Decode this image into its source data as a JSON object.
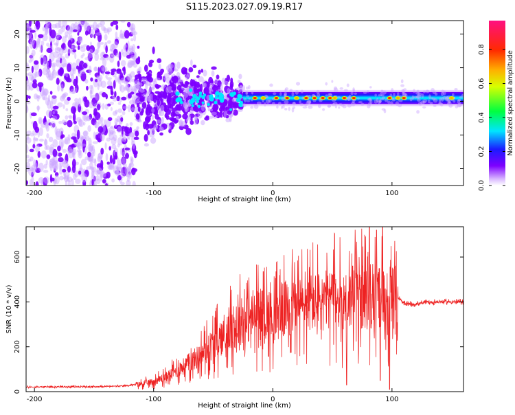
{
  "title": "S115.2023.027.09.19.R17",
  "colors": {
    "snr_line": "#ee2222",
    "spectrogram_scatter": "#7d00ff",
    "axis": "#000000"
  },
  "chart_data": [
    {
      "type": "heatmap",
      "xlabel": "Height of straight line (km)",
      "ylabel": "Frequency (Hz)",
      "xlim": [
        -207,
        160
      ],
      "ylim": [
        -25,
        24
      ],
      "xticks": [
        -200,
        -100,
        0,
        100
      ],
      "yticks": [
        20,
        10,
        0,
        -10,
        -20
      ],
      "colorbar": {
        "label": "Normalized spectral amplitude",
        "range": [
          0,
          0.97
        ],
        "ticks": [
          0.0,
          0.2,
          0.4,
          0.6,
          0.8
        ]
      },
      "signal_band": {
        "center_hz": 1,
        "scatter_region_km": [
          -207,
          -115
        ],
        "transition_region_km": [
          -115,
          -25
        ],
        "coherent_band_km": [
          -25,
          160
        ],
        "coherent_band_halfwidth_hz": 1.8
      },
      "grid": false
    },
    {
      "type": "line",
      "xlabel": "Height of straight line (km)",
      "ylabel": "SNR (10 * v/v)",
      "xlim": [
        -207,
        160
      ],
      "ylim": [
        0,
        735
      ],
      "xticks": [
        -200,
        -100,
        0,
        100
      ],
      "yticks": [
        0,
        200,
        400,
        600
      ],
      "series": [
        {
          "color": "#ee2222",
          "points": [
            [
              -207,
              20
            ],
            [
              -180,
              22
            ],
            [
              -150,
              22
            ],
            [
              -125,
              25
            ],
            [
              -110,
              35
            ],
            [
              -100,
              45
            ],
            [
              -90,
              65
            ],
            [
              -80,
              95
            ],
            [
              -70,
              130
            ],
            [
              -60,
              165
            ],
            [
              -50,
              215
            ],
            [
              -40,
              250
            ],
            [
              -30,
              300
            ],
            [
              -25,
              320
            ],
            [
              -15,
              330
            ],
            [
              -10,
              340
            ],
            [
              -5,
              350
            ],
            [
              0,
              330
            ],
            [
              10,
              370
            ],
            [
              20,
              380
            ],
            [
              30,
              395
            ],
            [
              40,
              400
            ],
            [
              50,
              410
            ],
            [
              60,
              400
            ],
            [
              70,
              420
            ],
            [
              80,
              410
            ],
            [
              90,
              420
            ],
            [
              95,
              420
            ],
            [
              100,
              425
            ],
            [
              105,
              420
            ],
            [
              110,
              390
            ],
            [
              120,
              390
            ],
            [
              130,
              398
            ],
            [
              140,
              400
            ],
            [
              150,
              400
            ],
            [
              160,
              400
            ]
          ],
          "spikes": [
            [
              -8,
              535
            ],
            [
              5,
              385
            ],
            [
              50,
              520
            ],
            [
              62,
              670
            ],
            [
              67,
              560
            ],
            [
              75,
              560
            ],
            [
              81,
              735
            ],
            [
              87,
              720
            ],
            [
              92,
              735
            ],
            [
              98,
              735
            ]
          ],
          "dips": [
            [
              62,
              30
            ],
            [
              90,
              50
            ],
            [
              98,
              10
            ]
          ]
        }
      ],
      "grid": false
    }
  ]
}
